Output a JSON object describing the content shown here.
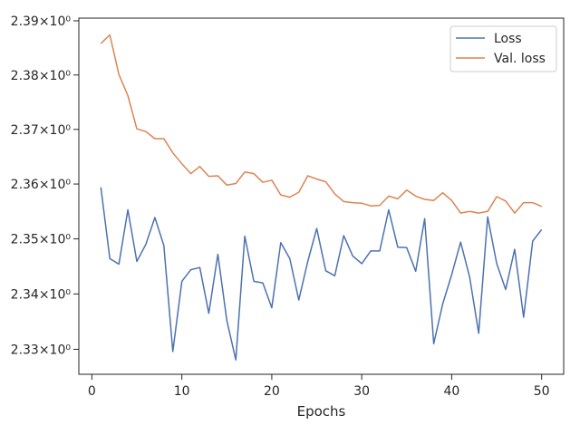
{
  "chart_data": {
    "type": "line",
    "title": "",
    "xlabel": "Epochs",
    "ylabel": "",
    "xlim": [
      -1.45,
      52.45
    ],
    "ylim": [
      2.3255,
      2.3905
    ],
    "yscale": "log",
    "xticks": [
      0,
      10,
      20,
      30,
      40,
      50
    ],
    "xtick_labels": [
      "0",
      "10",
      "20",
      "30",
      "40",
      "50"
    ],
    "yticks": [
      2.33,
      2.34,
      2.35,
      2.36,
      2.37,
      2.38,
      2.39
    ],
    "ytick_labels": [
      "2.33×10⁰",
      "2.34×10⁰",
      "2.35×10⁰",
      "2.36×10⁰",
      "2.37×10⁰",
      "2.38×10⁰",
      "2.39×10⁰"
    ],
    "grid": false,
    "legend_position": "top-right",
    "x": [
      1,
      2,
      3,
      4,
      5,
      6,
      7,
      8,
      9,
      10,
      11,
      12,
      13,
      14,
      15,
      16,
      17,
      18,
      19,
      20,
      21,
      22,
      23,
      24,
      25,
      26,
      27,
      28,
      29,
      30,
      31,
      32,
      33,
      34,
      35,
      36,
      37,
      38,
      39,
      40,
      41,
      42,
      43,
      44,
      45,
      46,
      47,
      48,
      49,
      50
    ],
    "series": [
      {
        "name": "Loss",
        "color": "#4c72b0",
        "values": [
          2.3594,
          2.3464,
          2.3454,
          2.3553,
          2.3459,
          2.349,
          2.3539,
          2.3488,
          2.3296,
          2.3423,
          2.3444,
          2.3448,
          2.3365,
          2.3472,
          2.3352,
          2.3281,
          2.3505,
          2.3423,
          2.342,
          2.3375,
          2.3493,
          2.3464,
          2.3389,
          2.3459,
          2.3519,
          2.3442,
          2.3433,
          2.3506,
          2.3469,
          2.3455,
          2.3478,
          2.3478,
          2.3553,
          2.3485,
          2.3484,
          2.3441,
          2.3537,
          2.331,
          2.3382,
          2.3435,
          2.3494,
          2.343,
          2.3329,
          2.354,
          2.3455,
          2.3408,
          2.3481,
          2.3358,
          2.3496,
          2.3517
        ]
      },
      {
        "name": "Val. loss",
        "color": "#dd8452",
        "values": [
          2.3858,
          2.3874,
          2.3801,
          2.3762,
          2.3701,
          2.3696,
          2.3683,
          2.3683,
          2.3657,
          2.3637,
          2.3619,
          2.3632,
          2.3614,
          2.3615,
          2.3598,
          2.3601,
          2.3622,
          2.3619,
          2.3603,
          2.3607,
          2.358,
          2.3576,
          2.3585,
          2.3615,
          2.3609,
          2.3604,
          2.3582,
          2.3568,
          2.3566,
          2.3565,
          2.356,
          2.3561,
          2.3578,
          2.3573,
          2.3589,
          2.3578,
          2.3572,
          2.357,
          2.3584,
          2.357,
          2.3547,
          2.355,
          2.3547,
          2.355,
          2.3577,
          2.3569,
          2.3547,
          2.3566,
          2.3566,
          2.3559
        ]
      }
    ]
  }
}
